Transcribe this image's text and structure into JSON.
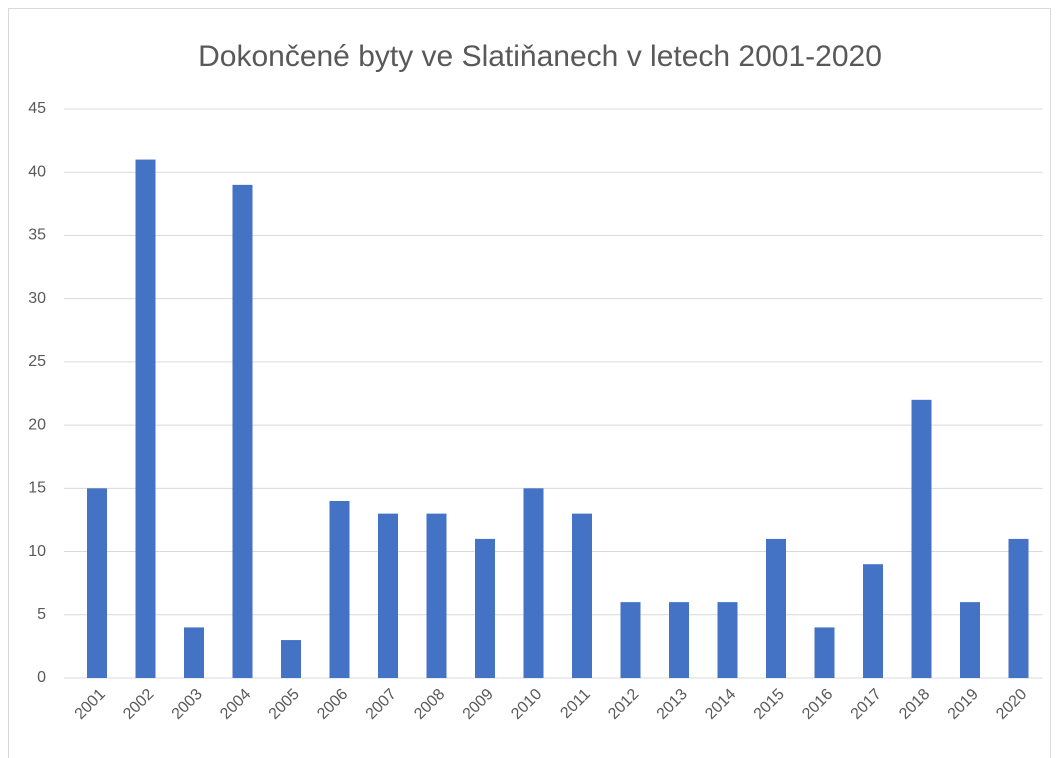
{
  "chart_data": {
    "type": "bar",
    "title": "Dokončené byty ve Slatiňanech v letech 2001-2020",
    "categories": [
      "2001",
      "2002",
      "2003",
      "2004",
      "2005",
      "2006",
      "2007",
      "2008",
      "2009",
      "2010",
      "2011",
      "2012",
      "2013",
      "2014",
      "2015",
      "2016",
      "2017",
      "2018",
      "2019",
      "2020"
    ],
    "values": [
      15,
      41,
      4,
      39,
      3,
      14,
      13,
      13,
      11,
      15,
      13,
      6,
      6,
      6,
      11,
      4,
      9,
      22,
      6,
      11
    ],
    "color": "#4472c4",
    "ylim": [
      0,
      45
    ],
    "yticks": [
      0,
      5,
      10,
      15,
      20,
      25,
      30,
      35,
      40,
      45
    ],
    "grid": true
  }
}
